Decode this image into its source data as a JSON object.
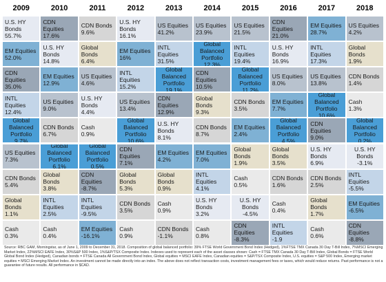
{
  "colors": {
    "US Equities": "#b8c2ce",
    "CDN Equities": "#9aa7b6",
    "EM Equities": "#7fb1d4",
    "INTL Equities": "#c3d5e8",
    "Global Bonds": "#e6e0cc",
    "CDN Bonds": "#d6d6d6",
    "U.S. HY Bonds": "#e6eaf2",
    "Cash": "#eaeaea",
    "Global Balanced Portfolio": "#4a9ed6"
  },
  "chart_data": {
    "type": "table",
    "years": [
      "2009",
      "2010",
      "2011",
      "2012",
      "2013",
      "2014",
      "2015",
      "2016",
      "2017",
      "2018"
    ],
    "columns": [
      [
        {
          "label": "U.S. HY Bonds",
          "value": "55.7%",
          "cat": "U.S. HY Bonds"
        },
        {
          "label": "EM Equities",
          "value": "52.0%",
          "cat": "EM Equities"
        },
        {
          "label": "CDN Equities",
          "value": "35.0%",
          "cat": "CDN Equities"
        },
        {
          "label": "INTL Equities",
          "value": "12.4%",
          "cat": "INTL Equities"
        },
        {
          "label": "Global\nBalanced\nPortfolio",
          "value": "9.7%",
          "cat": "Global Balanced Portfolio"
        },
        {
          "label": "US Equities",
          "value": "7.3%",
          "cat": "US Equities"
        },
        {
          "label": "CDN Bonds",
          "value": "5.4%",
          "cat": "CDN Bonds"
        },
        {
          "label": "Global Bonds",
          "value": "1.1%",
          "cat": "Global Bonds"
        },
        {
          "label": "Cash",
          "value": "0.3%",
          "cat": "Cash"
        }
      ],
      [
        {
          "label": "CDN Equities",
          "value": "17.6%",
          "cat": "CDN Equities"
        },
        {
          "label": "U.S. HY Bonds",
          "value": "14.8%",
          "cat": "U.S. HY Bonds"
        },
        {
          "label": "EM Equities",
          "value": "12.9%",
          "cat": "EM Equities"
        },
        {
          "label": "US Equities",
          "value": "9.0%",
          "cat": "US Equities"
        },
        {
          "label": "CDN Bonds",
          "value": "6.7%",
          "cat": "CDN Bonds"
        },
        {
          "label": "Global\nBalanced\nPortfolio",
          "value": "6.1%",
          "cat": "Global Balanced Portfolio"
        },
        {
          "label": "Global Bonds",
          "value": "3.8%",
          "cat": "Global Bonds"
        },
        {
          "label": "INTL Equities",
          "value": "2.5%",
          "cat": "INTL Equities"
        },
        {
          "label": "Cash",
          "value": "0.4%",
          "cat": "Cash"
        }
      ],
      [
        {
          "label": "CDN Bonds",
          "value": "9.6%",
          "cat": "CDN Bonds"
        },
        {
          "label": "Global Bonds",
          "value": "6.4%",
          "cat": "Global Bonds"
        },
        {
          "label": "US Equities",
          "value": "4.6%",
          "cat": "US Equities"
        },
        {
          "label": "U.S. HY Bonds",
          "value": "4.4%",
          "cat": "U.S. HY Bonds"
        },
        {
          "label": "Cash",
          "value": "0.9%",
          "cat": "Cash"
        },
        {
          "label": "Global\nBalanced\nPortfolio",
          "value": "0.5%",
          "cat": "Global Balanced Portfolio"
        },
        {
          "label": "CDN Equities",
          "value": "-8.7%",
          "cat": "CDN Equities"
        },
        {
          "label": "INTL Equities",
          "value": "-9.5%",
          "cat": "INTL Equities"
        },
        {
          "label": "EM Equities",
          "value": "-16.1%",
          "cat": "EM Equities"
        }
      ],
      [
        {
          "label": "U.S. HY Bonds",
          "value": "16.1%",
          "cat": "U.S. HY Bonds"
        },
        {
          "label": "EM Equities",
          "value": "16%",
          "cat": "EM Equities"
        },
        {
          "label": "INTL Equities",
          "value": "15.2%",
          "cat": "INTL Equities"
        },
        {
          "label": "US Equities",
          "value": "13.4%",
          "cat": "US Equities"
        },
        {
          "label": "Global\nBalanced\nPortfolio",
          "value": "10.6%",
          "cat": "Global Balanced Portfolio"
        },
        {
          "label": "CDN Equities",
          "value": "7.1%",
          "cat": "CDN Equities"
        },
        {
          "label": "Global Bonds",
          "value": "5.3%",
          "cat": "Global Bonds"
        },
        {
          "label": "CDN Bonds",
          "value": "3.5%",
          "cat": "CDN Bonds"
        },
        {
          "label": "Cash",
          "value": "0.9%",
          "cat": "Cash"
        }
      ],
      [
        {
          "label": "US Equities",
          "value": "41.2%",
          "cat": "US Equities"
        },
        {
          "label": "INTL Equities",
          "value": "31.5%",
          "cat": "INTL Equities"
        },
        {
          "label": "Global\nBalanced\nPortfolio",
          "value": "19.1%",
          "cat": "Global Balanced Portfolio"
        },
        {
          "label": "CDN Equities",
          "value": "12.9%",
          "cat": "CDN Equities"
        },
        {
          "label": "U.S. HY Bonds",
          "value": "8.1%",
          "cat": "U.S. HY Bonds"
        },
        {
          "label": "EM Equities",
          "value": "4.2%",
          "cat": "EM Equities"
        },
        {
          "label": "Global Bonds",
          "value": "0.9%",
          "cat": "Global Bonds"
        },
        {
          "label": "Cash",
          "value": "0.9%",
          "cat": "Cash"
        },
        {
          "label": "CDN Bonds",
          "value": "-1.1%",
          "cat": "CDN Bonds"
        }
      ],
      [
        {
          "label": "US Equities",
          "value": "23.9%",
          "cat": "US Equities"
        },
        {
          "label": "Global\nBalanced\nPortfolio",
          "value": "12.3%",
          "cat": "Global Balanced Portfolio"
        },
        {
          "label": "CDN Equities",
          "value": "10.5%",
          "cat": "CDN Equities"
        },
        {
          "label": "Global Bonds",
          "value": "9.3%",
          "cat": "Global Bonds"
        },
        {
          "label": "CDN Bonds",
          "value": "8.7%",
          "cat": "CDN Bonds"
        },
        {
          "label": "EM Equities",
          "value": "7.0%",
          "cat": "EM Equities"
        },
        {
          "label": "INTL Equities",
          "value": "4.1%",
          "cat": "INTL Equities"
        },
        {
          "label": "U.S. HY Bonds",
          "value": "3.2%",
          "cat": "U.S. HY Bonds"
        },
        {
          "label": "Cash",
          "value": "0.8%",
          "cat": "Cash"
        }
      ],
      [
        {
          "label": "US Equities",
          "value": "21.5%",
          "cat": "US Equities"
        },
        {
          "label": "INTL Equities",
          "value": "19.4%",
          "cat": "INTL Equities"
        },
        {
          "label": "Global\nBalanced\nPortfolio",
          "value": "11.2%",
          "cat": "Global Balanced Portfolio"
        },
        {
          "label": "CDN Bonds",
          "value": "3.5%",
          "cat": "CDN Bonds"
        },
        {
          "label": "EM Equities",
          "value": "2.4%",
          "cat": "EM Equities"
        },
        {
          "label": "Global Bonds",
          "value": "1.9%",
          "cat": "Global Bonds"
        },
        {
          "label": "Cash",
          "value": "0.5%",
          "cat": "Cash"
        },
        {
          "label": "U.S. HY\nBonds",
          "value": "-4.5%",
          "cat": "U.S. HY Bonds"
        },
        {
          "label": "CDN Equities",
          "value": "-8.3%",
          "cat": "CDN Equities"
        }
      ],
      [
        {
          "label": "CDN Equities",
          "value": "21.0%",
          "cat": "CDN Equities"
        },
        {
          "label": "U.S. HY Bonds",
          "value": "16.9%",
          "cat": "U.S. HY Bonds"
        },
        {
          "label": "US Equities",
          "value": "8.0%",
          "cat": "US Equities"
        },
        {
          "label": "EM Equities",
          "value": "7.7%",
          "cat": "EM Equities"
        },
        {
          "label": "Global\nBalanced\nPortfolio",
          "value": "4.5%",
          "cat": "Global Balanced Portfolio"
        },
        {
          "label": "Global Bonds",
          "value": "3.5%",
          "cat": "Global Bonds"
        },
        {
          "label": "CDN Bonds",
          "value": "1.6%",
          "cat": "CDN Bonds"
        },
        {
          "label": "Cash",
          "value": "0.4%",
          "cat": "Cash"
        },
        {
          "label": "INTL Equities",
          "value": "-1.9",
          "cat": "INTL Equities"
        }
      ],
      [
        {
          "label": "EM Equities",
          "value": "28.7%",
          "cat": "EM Equities"
        },
        {
          "label": "INTL Equities",
          "value": "17.3%",
          "cat": "INTL Equities"
        },
        {
          "label": "US Equities",
          "value": "13.8%",
          "cat": "US Equities"
        },
        {
          "label": "Global\nBalanced\nPortfolio",
          "value": "10.6%",
          "cat": "Global Balanced Portfolio"
        },
        {
          "label": "CDN Equities",
          "value": "9.0%",
          "cat": "CDN Equities"
        },
        {
          "label": "U.S. HY Bonds",
          "value": "6.9%",
          "cat": "U.S. HY Bonds"
        },
        {
          "label": "CDN Bonds",
          "value": "2.5%",
          "cat": "CDN Bonds"
        },
        {
          "label": "Global Bonds",
          "value": "1.7%",
          "cat": "Global Bonds"
        },
        {
          "label": "Cash",
          "value": "0.6%",
          "cat": "Cash"
        }
      ],
      [
        {
          "label": "US Equities",
          "value": "4.2%",
          "cat": "US Equities"
        },
        {
          "label": "Global Bonds",
          "value": "1.9%",
          "cat": "Global Bonds"
        },
        {
          "label": "CDN Bonds",
          "value": "1.4%",
          "cat": "CDN Bonds"
        },
        {
          "label": "Cash",
          "value": "1.3%",
          "cat": "Cash"
        },
        {
          "label": "Global\nBalanced\nPortfolio",
          "value": "0.2%",
          "cat": "Global Balanced Portfolio"
        },
        {
          "label": "U.S. HY\nBonds",
          "value": "-3.1%",
          "cat": "U.S. HY Bonds"
        },
        {
          "label": "INTL Equities",
          "value": "-5.5%",
          "cat": "INTL Equities"
        },
        {
          "label": "EM Equities",
          "value": "-6.5%",
          "cat": "EM Equities"
        },
        {
          "label": "CDN Equities",
          "value": "-8.8%",
          "cat": "CDN Equities"
        }
      ]
    ]
  },
  "footnote": "Source: RBC GAM, Morningstar, as of June 1, 2009 to December 31, 2018. Composition of global balanced portfolio: 39% FTSE World Government Bond Index (Hedged), 1%FTSE TMX Canada 30 Day T-Bill Index, 7%MSCI Emerging Market Index, 22%MSCI EAFE Index, 30%S&P 500 Index, 1%S&P/TSX Composite Index. Indexes used to represent each of the asset classes shown: Cash = FTSE TMX Canada 30 Day T-Bill Index, Global Bonds = FTSE World Global Bond Index (Hedged), Canadian bonds = FTSE Canada All Government Bond Index, Global equities = MSCI EAFE Index, Canadian equities = S&P/TSX Composite Index, U.S. equities = S&P 500 Index, Emerging market equities = MSCI Emerging Market Index. An investment cannot be made directly into an index. The above does not reflect transaction costs, investment management fees or taxes, which would reduce returns. Past performance is not a guarantee of future results. All performance in $CAD."
}
